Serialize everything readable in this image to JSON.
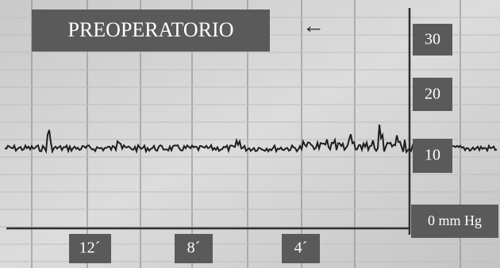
{
  "title": "PREOPERATORIO",
  "arrow": "←",
  "right_labels": [
    "30",
    "20",
    "10",
    "0 mm Hg"
  ],
  "bottom_labels": [
    "12´",
    "8´",
    "4´"
  ]
}
